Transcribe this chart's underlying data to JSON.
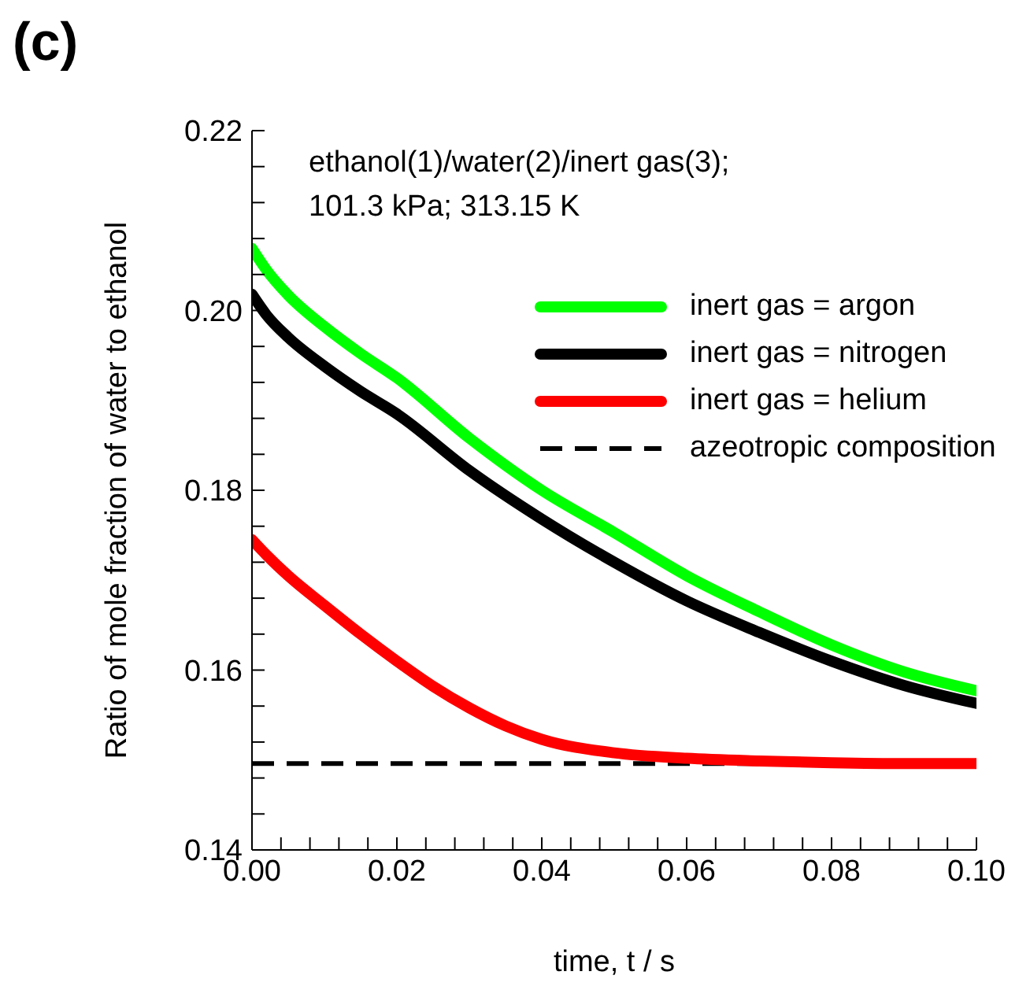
{
  "chart_data": {
    "type": "line",
    "xlabel": "time, t / s",
    "ylabel": "Ratio of mole fraction of water to ethanol",
    "annotations": [
      "(c)",
      "ethanol(1)/water(2)/inert gas(3);",
      "101.3 kPa; 313.15 K"
    ],
    "series": [
      {
        "name": "inert gas = argon",
        "color": "#00ff00",
        "x": [
          0,
          0.002,
          0.005,
          0.01,
          0.015,
          0.02,
          0.03,
          0.04,
          0.05,
          0.06,
          0.07,
          0.08,
          0.09,
          0.1
        ],
        "values": [
          0.2069,
          0.2045,
          0.2017,
          0.1982,
          0.1952,
          0.1925,
          0.1858,
          0.18,
          0.1753,
          0.1705,
          0.1665,
          0.1628,
          0.1598,
          0.1577
        ]
      },
      {
        "name": "inert gas = nitrogen",
        "color": "#000000",
        "x": [
          0,
          0.002,
          0.005,
          0.01,
          0.015,
          0.02,
          0.03,
          0.04,
          0.05,
          0.06,
          0.07,
          0.08,
          0.09,
          0.1
        ],
        "values": [
          0.2018,
          0.1995,
          0.197,
          0.1938,
          0.191,
          0.1885,
          0.1822,
          0.1768,
          0.172,
          0.1677,
          0.1642,
          0.161,
          0.1583,
          0.1563
        ]
      },
      {
        "name": "inert gas = helium",
        "color": "#ff0000",
        "x": [
          0,
          0.002,
          0.005,
          0.01,
          0.015,
          0.02,
          0.025,
          0.03,
          0.035,
          0.04,
          0.05,
          0.06,
          0.07,
          0.08,
          0.09,
          0.1
        ],
        "values": [
          0.1745,
          0.1728,
          0.1705,
          0.1672,
          0.164,
          0.161,
          0.1582,
          0.1558,
          0.1538,
          0.1523,
          0.1508,
          0.1502,
          0.1499,
          0.1497,
          0.1496,
          0.1496
        ]
      }
    ],
    "ref_lines": [
      {
        "axis": "y",
        "value": 0.1496,
        "label": "azeotropic composition",
        "color": "#000000",
        "line_style": "dashed"
      }
    ],
    "xlim": [
      0,
      0.1
    ],
    "xticks": [
      {
        "value": 0,
        "label": "0.00"
      },
      {
        "value": 0.004,
        "label": null
      },
      {
        "value": 0.008,
        "label": null
      },
      {
        "value": 0.012,
        "label": null
      },
      {
        "value": 0.016,
        "label": null
      },
      {
        "value": 0.02,
        "label": "0.02"
      },
      {
        "value": 0.024,
        "label": null
      },
      {
        "value": 0.028,
        "label": null
      },
      {
        "value": 0.032,
        "label": null
      },
      {
        "value": 0.036,
        "label": null
      },
      {
        "value": 0.04,
        "label": "0.04"
      },
      {
        "value": 0.044,
        "label": null
      },
      {
        "value": 0.048,
        "label": null
      },
      {
        "value": 0.052,
        "label": null
      },
      {
        "value": 0.056,
        "label": null
      },
      {
        "value": 0.06,
        "label": "0.06"
      },
      {
        "value": 0.064,
        "label": null
      },
      {
        "value": 0.068,
        "label": null
      },
      {
        "value": 0.072,
        "label": null
      },
      {
        "value": 0.076,
        "label": null
      },
      {
        "value": 0.08,
        "label": "0.08"
      },
      {
        "value": 0.084,
        "label": null
      },
      {
        "value": 0.088,
        "label": null
      },
      {
        "value": 0.092,
        "label": null
      },
      {
        "value": 0.096,
        "label": null
      },
      {
        "value": 0.1,
        "label": "0.10"
      }
    ],
    "ylim": [
      0.14,
      0.22
    ],
    "yticks": [
      0.14,
      {
        "value": 0.144,
        "label": null
      },
      {
        "value": 0.148,
        "label": null
      },
      {
        "value": 0.152,
        "label": null
      },
      {
        "value": 0.156,
        "label": null
      },
      {
        "value": 0.16,
        "label": "0.16"
      },
      {
        "value": 0.164,
        "label": null
      },
      {
        "value": 0.168,
        "label": null
      },
      {
        "value": 0.172,
        "label": null
      },
      {
        "value": 0.176,
        "label": null
      },
      {
        "value": 0.18,
        "label": "0.18"
      },
      {
        "value": 0.184,
        "label": null
      },
      {
        "value": 0.188,
        "label": null
      },
      {
        "value": 0.192,
        "label": null
      },
      {
        "value": 0.196,
        "label": null
      },
      {
        "value": 0.2,
        "label": "0.20"
      },
      {
        "value": 0.204,
        "label": null
      },
      {
        "value": 0.208,
        "label": null
      },
      {
        "value": 0.212,
        "label": null
      },
      {
        "value": 0.216,
        "label": null
      },
      {
        "value": 0.22,
        "label": "0.22"
      }
    ],
    "legend": "top right",
    "marker": "none",
    "line_style": "solid"
  }
}
